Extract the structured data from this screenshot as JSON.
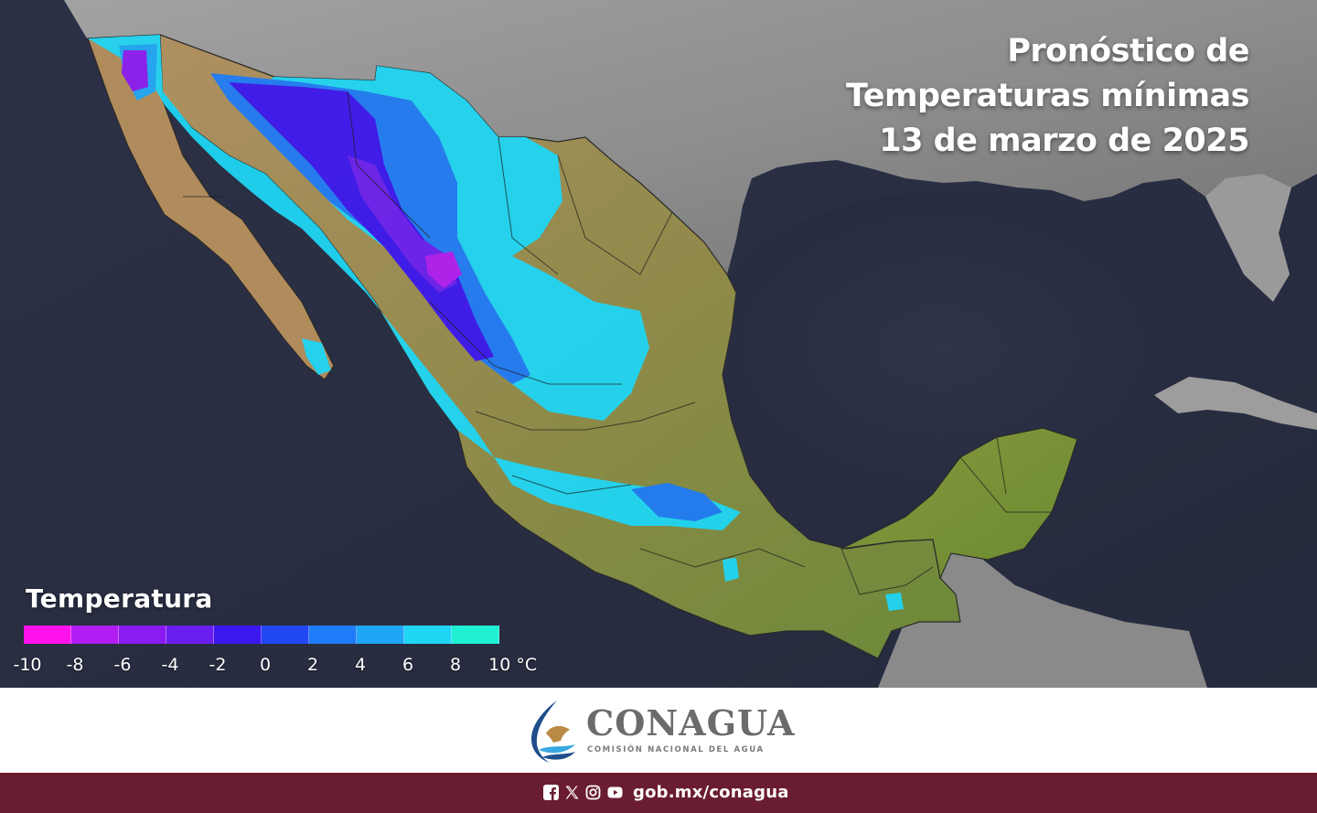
{
  "map": {
    "title_lines": [
      "Pronóstico de",
      "Temperaturas mínimas",
      "13 de marzo de 2025"
    ]
  },
  "legend": {
    "title": "Temperatura",
    "colors": [
      "#ff12ee",
      "#b11df3",
      "#8a1cf2",
      "#6a1ff0",
      "#3b17f0",
      "#2248f5",
      "#1f7bf7",
      "#1ea6f7",
      "#1fd6f5",
      "#1ff0d4"
    ],
    "labels": [
      "-10",
      "-8",
      "-6",
      "-4",
      "-2",
      "0",
      "2",
      "4",
      "6",
      "8",
      "10 °C"
    ]
  },
  "logo": {
    "name": "CONAGUA",
    "subtitle": "COMISIÓN NACIONAL DEL AGUA"
  },
  "footer": {
    "icons": [
      "facebook-icon",
      "x-icon",
      "instagram-icon",
      "youtube-icon"
    ],
    "link": "gob.mx/conagua"
  }
}
